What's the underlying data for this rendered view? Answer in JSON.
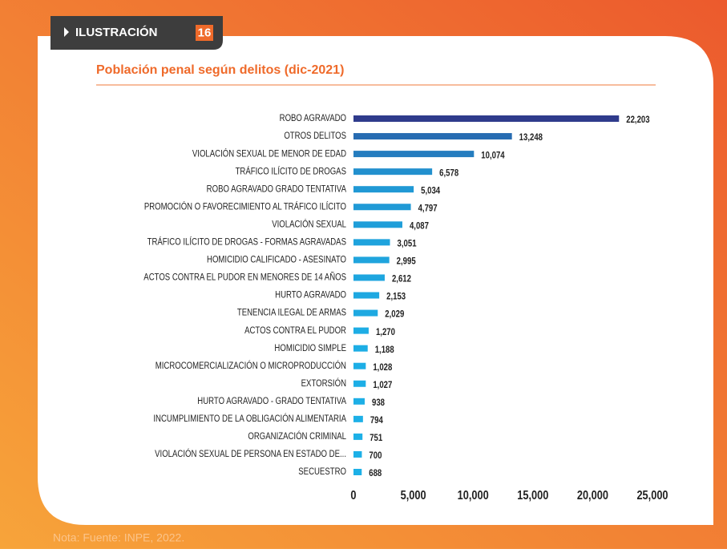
{
  "tab": {
    "label": "ILUSTRACIÓN",
    "number": "16"
  },
  "note": "Nota: Fuente: INPE, 2022.",
  "chart_data": {
    "type": "hbar",
    "title": "Población penal según delitos (dic-2021)",
    "categories": [
      "ROBO AGRAVADO",
      "OTROS DELITOS",
      "VIOLACIÓN SEXUAL DE MENOR DE EDAD",
      "TRÁFICO ILÍCITO DE DROGAS",
      "ROBO AGRAVADO GRADO TENTATIVA",
      "PROMOCIÓN O FAVORECIMIENTO AL TRÁFICO ILÍCITO",
      "VIOLACIÓN SEXUAL",
      "TRÁFICO ILÍCITO DE DROGAS - FORMAS AGRAVADAS",
      "HOMICIDIO CALIFICADO - ASESINATO",
      "ACTOS CONTRA EL PUDOR EN MENORES DE 14 AÑOS",
      "HURTO AGRAVADO",
      "TENENCIA ILEGAL DE ARMAS",
      "ACTOS CONTRA EL PUDOR",
      "HOMICIDIO SIMPLE",
      "MICROCOMERCIALIZACIÓN O MICROPRODUCCIÓN",
      "EXTORSIÓN",
      "HURTO AGRAVADO - GRADO TENTATIVA",
      "INCUMPLIMIENTO DE LA OBLIGACIÓN ALIMENTARIA",
      "ORGANIZACIÓN CRIMINAL",
      "VIOLACIÓN SEXUAL DE PERSONA EN ESTADO DE...",
      "SECUESTRO"
    ],
    "values": [
      22203,
      13248,
      10074,
      6578,
      5034,
      4797,
      4087,
      3051,
      2995,
      2612,
      2153,
      2029,
      1270,
      1188,
      1028,
      1027,
      938,
      794,
      751,
      700,
      688
    ],
    "value_labels": [
      "22,203",
      "13,248",
      "10,074",
      "6,578",
      "5,034",
      "4,797",
      "4,087",
      "3,051",
      "2,995",
      "2,612",
      "2,153",
      "2,029",
      "1,270",
      "1,188",
      "1,028",
      "1,027",
      "938",
      "794",
      "751",
      "700",
      "688"
    ],
    "color_range": [
      "#1cb4ea",
      "#2f3b8c"
    ],
    "xlim": [
      0,
      25000
    ],
    "xticks": [
      0,
      {
        "value": 5000,
        "label": "5,000"
      },
      {
        "value": 10000,
        "label": "10,000"
      },
      {
        "value": 15000,
        "label": "15,000"
      },
      {
        "value": 20000,
        "label": "20,000"
      },
      {
        "value": 25000,
        "label": "25,000"
      }
    ],
    "grid": false
  }
}
